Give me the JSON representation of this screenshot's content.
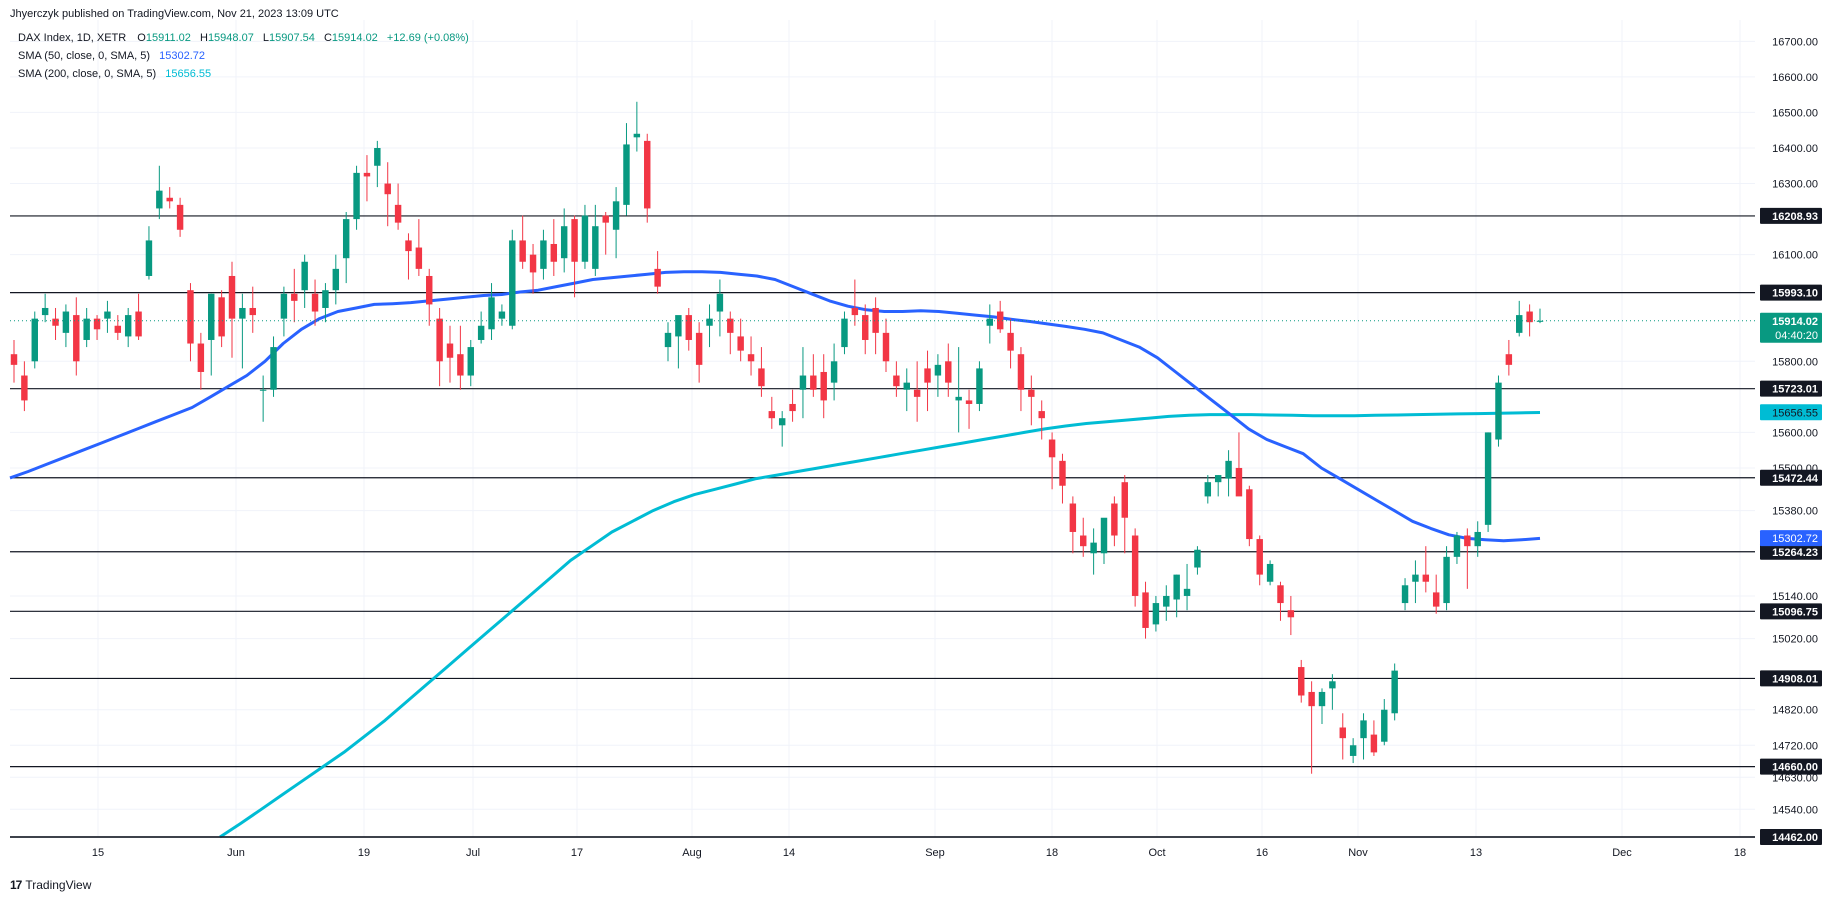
{
  "publisher_line": "Jhyerczyk published on TradingView.com, Nov 21, 2023 13:09 UTC",
  "legend": {
    "symbol": "DAX Index, 1D, XETR",
    "ohlc": {
      "o_label": "O",
      "o": "15911.02",
      "h_label": "H",
      "h": "15948.07",
      "l_label": "L",
      "l": "15907.54",
      "c_label": "C",
      "c": "15914.02",
      "chg": "+12.69 (+0.08%)"
    },
    "sma50": {
      "label": "SMA (50, close, 0, SMA, 5)",
      "value": "15302.72",
      "color": "#2962ff"
    },
    "sma200": {
      "label": "SMA (200, close, 0, SMA, 5)",
      "value": "15656.55",
      "color": "#00bcd4"
    }
  },
  "footer": {
    "logo": "17",
    "brand": "TradingView"
  },
  "colors": {
    "up": "#089981",
    "down": "#f23645",
    "grid": "#f0f3fa",
    "level_line": "#131722",
    "price_tag": "#089981"
  },
  "chart_data": {
    "type": "candlestick",
    "y_range": [
      14462,
      16760
    ],
    "y_ticks": [
      "16700.00",
      "16600.00",
      "16500.00",
      "16400.00",
      "16300.00",
      "16100.00",
      "15800.00",
      "15600.00",
      "15500.00",
      "15380.00",
      "15140.00",
      "15020.00",
      "14820.00",
      "14720.00",
      "14630.00",
      "14540.00"
    ],
    "x_ticks": [
      "15",
      "Jun",
      "19",
      "Jul",
      "17",
      "Aug",
      "14",
      "Sep",
      "18",
      "Oct",
      "16",
      "Nov",
      "13",
      "Dec",
      "18"
    ],
    "levels": [
      "16208.93",
      "15993.10",
      "15723.01",
      "15472.44",
      "15264.23",
      "15096.75",
      "14908.01",
      "14660.00",
      "14462.00"
    ],
    "last_price": {
      "value": "15914.02",
      "countdown": "04:40:20"
    },
    "sma50_tag": "15302.72",
    "sma200_tag": "15656.55",
    "ohlc": [
      [
        15820,
        15860,
        15740,
        15790
      ],
      [
        15760,
        15800,
        15660,
        15690
      ],
      [
        15800,
        15940,
        15780,
        15920
      ],
      [
        15930,
        15990,
        15910,
        15950
      ],
      [
        15920,
        15950,
        15860,
        15900
      ],
      [
        15880,
        15960,
        15840,
        15940
      ],
      [
        15930,
        15980,
        15760,
        15800
      ],
      [
        15860,
        15950,
        15840,
        15920
      ],
      [
        15920,
        15930,
        15860,
        15890
      ],
      [
        15920,
        15970,
        15880,
        15940
      ],
      [
        15900,
        15930,
        15860,
        15880
      ],
      [
        15870,
        15950,
        15840,
        15930
      ],
      [
        15940,
        15990,
        15860,
        15870
      ],
      [
        16040,
        16180,
        16030,
        16140
      ],
      [
        16230,
        16350,
        16200,
        16280
      ],
      [
        16260,
        16290,
        16230,
        16250
      ],
      [
        16240,
        16260,
        16150,
        16170
      ],
      [
        16000,
        16020,
        15800,
        15850
      ],
      [
        15850,
        15880,
        15720,
        15770
      ],
      [
        15860,
        15990,
        15760,
        15990
      ],
      [
        15980,
        16000,
        15840,
        15870
      ],
      [
        16040,
        16080,
        15810,
        15920
      ],
      [
        15920,
        15990,
        15780,
        15950
      ],
      [
        15950,
        16010,
        15880,
        15930
      ],
      [
        15720,
        15760,
        15630,
        15720
      ],
      [
        15720,
        15870,
        15700,
        15840
      ],
      [
        15920,
        16010,
        15870,
        15990
      ],
      [
        15990,
        16060,
        15910,
        15970
      ],
      [
        16000,
        16100,
        15950,
        16080
      ],
      [
        15990,
        16030,
        15900,
        15940
      ],
      [
        15950,
        16020,
        15910,
        16000
      ],
      [
        16000,
        16100,
        15960,
        16060
      ],
      [
        16090,
        16220,
        16020,
        16200
      ],
      [
        16200,
        16350,
        16170,
        16330
      ],
      [
        16330,
        16380,
        16250,
        16320
      ],
      [
        16350,
        16420,
        16290,
        16400
      ],
      [
        16300,
        16360,
        16180,
        16270
      ],
      [
        16240,
        16300,
        16170,
        16190
      ],
      [
        16140,
        16160,
        16030,
        16110
      ],
      [
        16120,
        16200,
        16040,
        16060
      ],
      [
        16040,
        16060,
        15900,
        15960
      ],
      [
        15920,
        15950,
        15730,
        15800
      ],
      [
        15850,
        15900,
        15740,
        15810
      ],
      [
        15820,
        15900,
        15720,
        15760
      ],
      [
        15760,
        15860,
        15730,
        15840
      ],
      [
        15860,
        15940,
        15850,
        15900
      ],
      [
        15890,
        16020,
        15860,
        15980
      ],
      [
        15920,
        15960,
        15900,
        15940
      ],
      [
        15900,
        16170,
        15890,
        16140
      ],
      [
        16140,
        16210,
        16060,
        16080
      ],
      [
        16100,
        16130,
        15990,
        16050
      ],
      [
        16060,
        16170,
        16030,
        16140
      ],
      [
        16130,
        16200,
        16040,
        16080
      ],
      [
        16090,
        16230,
        16050,
        16180
      ],
      [
        16200,
        16210,
        15980,
        16080
      ],
      [
        16080,
        16240,
        16060,
        16210
      ],
      [
        16060,
        16240,
        16040,
        16180
      ],
      [
        16210,
        16220,
        16100,
        16190
      ],
      [
        16170,
        16290,
        16090,
        16250
      ],
      [
        16240,
        16470,
        16210,
        16410
      ],
      [
        16430,
        16530,
        16390,
        16440
      ],
      [
        16420,
        16440,
        16190,
        16230
      ],
      [
        16060,
        16110,
        15990,
        16010
      ],
      [
        15840,
        15910,
        15800,
        15880
      ],
      [
        15870,
        15920,
        15780,
        15930
      ],
      [
        15930,
        15950,
        15830,
        15860
      ],
      [
        15880,
        15910,
        15740,
        15790
      ],
      [
        15900,
        15960,
        15840,
        15920
      ],
      [
        15940,
        16030,
        15870,
        15990
      ],
      [
        15920,
        15940,
        15820,
        15880
      ],
      [
        15870,
        15920,
        15800,
        15830
      ],
      [
        15820,
        15870,
        15760,
        15800
      ],
      [
        15780,
        15840,
        15700,
        15730
      ],
      [
        15660,
        15700,
        15610,
        15640
      ],
      [
        15620,
        15660,
        15560,
        15640
      ],
      [
        15680,
        15720,
        15630,
        15660
      ],
      [
        15720,
        15840,
        15640,
        15760
      ],
      [
        15760,
        15820,
        15700,
        15720
      ],
      [
        15770,
        15820,
        15640,
        15690
      ],
      [
        15740,
        15850,
        15690,
        15800
      ],
      [
        15840,
        15940,
        15820,
        15920
      ],
      [
        15950,
        16030,
        15900,
        15930
      ],
      [
        15930,
        15960,
        15820,
        15860
      ],
      [
        15950,
        15980,
        15820,
        15880
      ],
      [
        15880,
        15920,
        15770,
        15800
      ],
      [
        15760,
        15800,
        15700,
        15730
      ],
      [
        15720,
        15780,
        15660,
        15740
      ],
      [
        15720,
        15800,
        15630,
        15700
      ],
      [
        15780,
        15830,
        15660,
        15740
      ],
      [
        15760,
        15820,
        15700,
        15790
      ],
      [
        15800,
        15850,
        15700,
        15740
      ],
      [
        15690,
        15840,
        15600,
        15700
      ],
      [
        15690,
        15720,
        15610,
        15680
      ],
      [
        15680,
        15800,
        15660,
        15780
      ],
      [
        15900,
        15960,
        15850,
        15920
      ],
      [
        15940,
        15970,
        15880,
        15890
      ],
      [
        15880,
        15920,
        15780,
        15830
      ],
      [
        15820,
        15840,
        15660,
        15720
      ],
      [
        15720,
        15760,
        15620,
        15700
      ],
      [
        15660,
        15690,
        15580,
        15640
      ],
      [
        15580,
        15600,
        15440,
        15530
      ],
      [
        15520,
        15540,
        15400,
        15450
      ],
      [
        15400,
        15420,
        15260,
        15320
      ],
      [
        15310,
        15360,
        15250,
        15280
      ],
      [
        15260,
        15330,
        15200,
        15290
      ],
      [
        15260,
        15340,
        15230,
        15360
      ],
      [
        15400,
        15420,
        15280,
        15310
      ],
      [
        15460,
        15480,
        15260,
        15360
      ],
      [
        15310,
        15330,
        15110,
        15140
      ],
      [
        15150,
        15180,
        15020,
        15050
      ],
      [
        15060,
        15140,
        15040,
        15120
      ],
      [
        15110,
        15170,
        15070,
        15140
      ],
      [
        15130,
        15200,
        15080,
        15200
      ],
      [
        15140,
        15230,
        15100,
        15160
      ],
      [
        15220,
        15280,
        15200,
        15270
      ],
      [
        15420,
        15480,
        15400,
        15460
      ],
      [
        15460,
        15480,
        15420,
        15480
      ],
      [
        15470,
        15550,
        15420,
        15520
      ],
      [
        15500,
        15600,
        15430,
        15420
      ],
      [
        15440,
        15450,
        15280,
        15300
      ],
      [
        15300,
        15310,
        15170,
        15200
      ],
      [
        15180,
        15240,
        15170,
        15230
      ],
      [
        15170,
        15180,
        15070,
        15120
      ],
      [
        15100,
        15140,
        15030,
        15080
      ],
      [
        14940,
        14960,
        14840,
        14860
      ],
      [
        14870,
        14900,
        14640,
        14830
      ],
      [
        14830,
        14880,
        14780,
        14870
      ],
      [
        14880,
        14920,
        14820,
        14900
      ],
      [
        14770,
        14810,
        14680,
        14740
      ],
      [
        14690,
        14740,
        14670,
        14720
      ],
      [
        14740,
        14810,
        14680,
        14790
      ],
      [
        14750,
        14790,
        14690,
        14700
      ],
      [
        14730,
        14850,
        14720,
        14820
      ],
      [
        14810,
        14950,
        14790,
        14930
      ],
      [
        15120,
        15190,
        15100,
        15170
      ],
      [
        15180,
        15240,
        15120,
        15200
      ],
      [
        15200,
        15280,
        15150,
        15180
      ],
      [
        15150,
        15200,
        15090,
        15110
      ],
      [
        15120,
        15280,
        15100,
        15250
      ],
      [
        15250,
        15320,
        15230,
        15310
      ],
      [
        15310,
        15330,
        15160,
        15280
      ],
      [
        15280,
        15350,
        15250,
        15320
      ],
      [
        15340,
        15600,
        15320,
        15600
      ],
      [
        15580,
        15760,
        15560,
        15740
      ],
      [
        15820,
        15860,
        15760,
        15790
      ],
      [
        15880,
        15970,
        15870,
        15930
      ],
      [
        15940,
        15960,
        15870,
        15910
      ],
      [
        15911.02,
        15948.07,
        15907.54,
        15914.02
      ]
    ],
    "sma50": [
      15472,
      15490,
      15510,
      15530,
      15550,
      15570,
      15590,
      15610,
      15630,
      15650,
      15670,
      15700,
      15730,
      15760,
      15800,
      15850,
      15890,
      15920,
      15940,
      15950,
      15960,
      15962,
      15965,
      15970,
      15975,
      15980,
      15985,
      15988,
      15995,
      16000,
      16010,
      16020,
      16030,
      16035,
      16040,
      16045,
      16050,
      16052,
      16052,
      16050,
      16045,
      16040,
      16030,
      16010,
      15990,
      15970,
      15955,
      15945,
      15940,
      15940,
      15942,
      15940,
      15935,
      15930,
      15925,
      15918,
      15912,
      15905,
      15898,
      15890,
      15880,
      15860,
      15840,
      15810,
      15770,
      15730,
      15690,
      15650,
      15610,
      15580,
      15560,
      15540,
      15500,
      15470,
      15440,
      15410,
      15380,
      15350,
      15330,
      15312,
      15302,
      15298,
      15295,
      15298,
      15302
    ],
    "sma200": [
      14462,
      14500,
      14540,
      14580,
      14620,
      14660,
      14700,
      14745,
      14790,
      14840,
      14890,
      14940,
      14990,
      15040,
      15090,
      15140,
      15190,
      15240,
      15280,
      15320,
      15350,
      15380,
      15405,
      15425,
      15440,
      15455,
      15470,
      15480,
      15490,
      15500,
      15510,
      15520,
      15530,
      15540,
      15550,
      15560,
      15570,
      15580,
      15590,
      15600,
      15610,
      15618,
      15625,
      15630,
      15635,
      15640,
      15645,
      15648,
      15650,
      15650,
      15650,
      15649,
      15648,
      15647,
      15647,
      15647,
      15648,
      15649,
      15650,
      15651,
      15652,
      15653,
      15654,
      15655,
      15656
    ]
  }
}
